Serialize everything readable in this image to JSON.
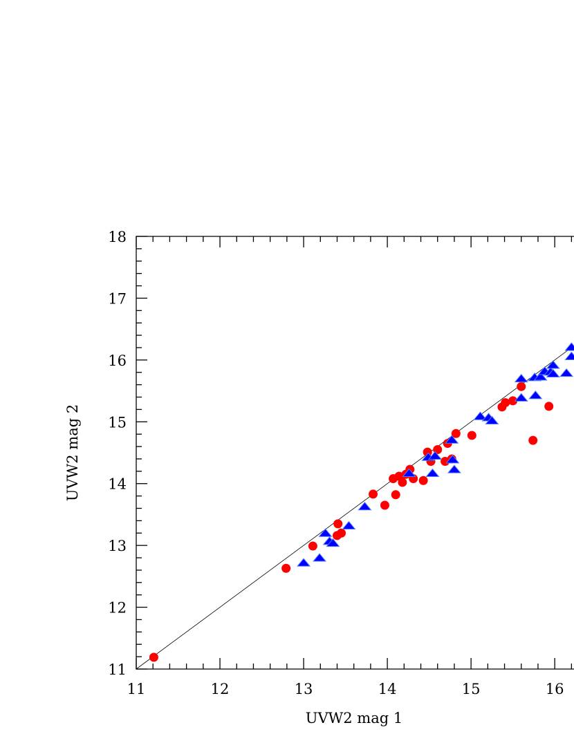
{
  "chart_data": {
    "type": "scatter",
    "x_label": "UVW2 mag 1",
    "y_label": "UVW2 mag 2",
    "xlim": [
      11,
      16.23
    ],
    "ylim": [
      11,
      18
    ],
    "xticks": [
      11,
      12,
      13,
      14,
      15,
      16
    ],
    "yticks": [
      11,
      12,
      13,
      14,
      15,
      16,
      17,
      18
    ],
    "minor_divisions": 5,
    "identity_line": true,
    "series": [
      {
        "color": "#ff0000",
        "marker": "circle",
        "x": [
          11.21,
          12.79,
          13.11,
          13.41,
          13.4,
          13.45,
          13.83,
          13.97,
          14.07,
          14.1,
          14.14,
          14.18,
          14.22,
          14.27,
          14.31,
          14.43,
          14.48,
          14.52,
          14.6,
          14.69,
          14.72,
          14.77,
          14.82,
          15.01,
          15.37,
          15.41,
          15.5,
          15.6,
          15.74,
          15.93
        ],
        "y": [
          11.19,
          12.63,
          12.99,
          13.35,
          13.16,
          13.2,
          13.83,
          13.65,
          14.08,
          13.82,
          14.12,
          14.02,
          14.15,
          14.23,
          14.08,
          14.05,
          14.51,
          14.36,
          14.55,
          14.36,
          14.65,
          14.4,
          14.81,
          14.78,
          15.24,
          15.31,
          15.34,
          15.57,
          14.7,
          15.25
        ]
      },
      {
        "color": "#0000ff",
        "marker": "triangle",
        "x": [
          13.0,
          13.19,
          13.26,
          13.31,
          13.35,
          13.54,
          13.73,
          14.26,
          14.49,
          14.54,
          14.57,
          14.78,
          14.8,
          14.77,
          15.11,
          15.21,
          15.25,
          15.6,
          15.6,
          15.77,
          15.76,
          15.83,
          15.88,
          15.95,
          15.98,
          15.98,
          16.14,
          16.2,
          16.2
        ],
        "y": [
          12.72,
          12.8,
          13.2,
          13.07,
          13.04,
          13.32,
          13.63,
          14.17,
          14.43,
          14.17,
          14.45,
          14.39,
          14.23,
          14.71,
          15.09,
          15.07,
          15.02,
          15.7,
          15.39,
          15.43,
          15.72,
          15.73,
          15.82,
          15.81,
          15.92,
          15.78,
          15.79,
          16.06,
          16.21
        ]
      }
    ]
  }
}
